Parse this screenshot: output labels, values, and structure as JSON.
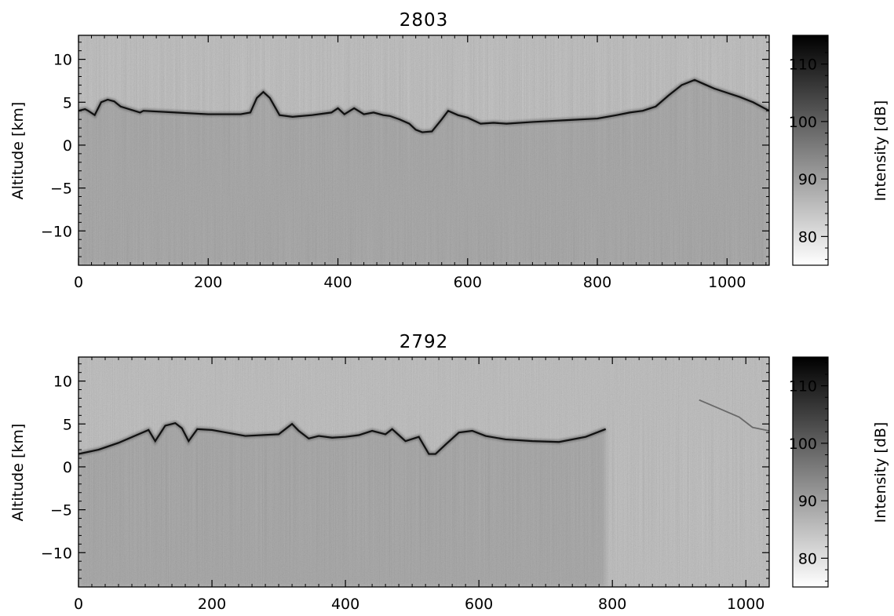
{
  "chart_data": [
    {
      "type": "heatmap",
      "title": "2803",
      "xlabel": "",
      "ylabel": "Altitude [km]",
      "xlim": [
        0,
        1065
      ],
      "ylim": [
        -14,
        12.8
      ],
      "xticks": [
        0,
        200,
        400,
        600,
        800,
        1000
      ],
      "yticks": [
        10,
        5,
        0,
        -5,
        -10
      ],
      "colorbar": {
        "label": "Intensity [dB]",
        "range": [
          75,
          115
        ],
        "ticks": [
          110,
          100,
          90,
          80
        ]
      },
      "surface_echo": {
        "x": [
          0,
          10,
          15,
          25,
          35,
          45,
          55,
          60,
          65,
          95,
          100,
          150,
          200,
          250,
          265,
          275,
          285,
          295,
          310,
          330,
          360,
          390,
          400,
          410,
          425,
          440,
          455,
          470,
          480,
          495,
          510,
          520,
          530,
          545,
          560,
          570,
          585,
          600,
          620,
          640,
          660,
          700,
          750,
          800,
          830,
          850,
          870,
          890,
          910,
          930,
          950,
          965,
          980,
          1000,
          1020,
          1040,
          1065
        ],
        "y": [
          4.0,
          4.2,
          4.0,
          3.5,
          5.0,
          5.3,
          5.1,
          4.8,
          4.5,
          3.8,
          4.0,
          3.8,
          3.6,
          3.6,
          3.8,
          5.5,
          6.2,
          5.5,
          3.5,
          3.3,
          3.5,
          3.8,
          4.3,
          3.6,
          4.3,
          3.6,
          3.8,
          3.5,
          3.4,
          3.0,
          2.5,
          1.8,
          1.5,
          1.6,
          3.0,
          4.0,
          3.5,
          3.2,
          2.5,
          2.6,
          2.5,
          2.7,
          2.9,
          3.1,
          3.5,
          3.8,
          4.0,
          4.5,
          5.8,
          7.0,
          7.6,
          7.1,
          6.6,
          6.1,
          5.6,
          5.0,
          4.0
        ]
      }
    },
    {
      "type": "heatmap",
      "title": "2792",
      "xlabel": "",
      "ylabel": "Altitude [km]",
      "xlim": [
        0,
        1035
      ],
      "ylim": [
        -14,
        12.8
      ],
      "xticks": [
        0,
        200,
        400,
        600,
        800,
        1000
      ],
      "yticks": [
        10,
        5,
        0,
        -5,
        -10
      ],
      "colorbar": {
        "label": "Intensity [dB]",
        "range": [
          75,
          115
        ],
        "ticks": [
          110,
          100,
          90,
          80
        ]
      },
      "surface_echo": {
        "x": [
          0,
          30,
          60,
          90,
          105,
          115,
          130,
          145,
          155,
          165,
          178,
          200,
          250,
          300,
          320,
          330,
          345,
          360,
          380,
          400,
          420,
          440,
          460,
          470,
          490,
          510,
          525,
          535,
          550,
          570,
          590,
          610,
          640,
          680,
          720,
          760,
          790
        ],
        "y": [
          1.5,
          2.0,
          2.8,
          3.8,
          4.3,
          3.0,
          4.8,
          5.1,
          4.5,
          3.0,
          4.4,
          4.3,
          3.6,
          3.8,
          5.0,
          4.2,
          3.3,
          3.6,
          3.4,
          3.5,
          3.7,
          4.2,
          3.8,
          4.4,
          3.0,
          3.5,
          1.5,
          1.5,
          2.6,
          4.0,
          4.2,
          3.6,
          3.2,
          3.0,
          2.9,
          3.5,
          4.4
        ],
        "faint_x": [
          930,
          960,
          990,
          1010,
          1035
        ],
        "faint_y": [
          7.8,
          6.8,
          5.8,
          4.6,
          4.2
        ]
      }
    }
  ]
}
